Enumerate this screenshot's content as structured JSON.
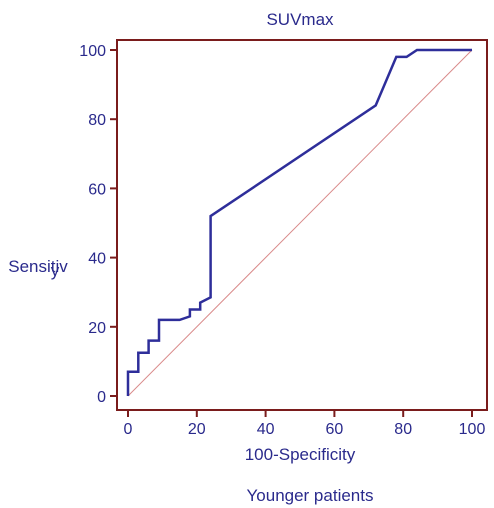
{
  "chart_data": {
    "type": "line",
    "title": "SUVmax",
    "xlabel": "100-Specificity",
    "ylabel_lines": [
      "Sensitiv",
      "y"
    ],
    "footer": "Younger patients",
    "xlim": [
      0,
      100
    ],
    "ylim": [
      0,
      100
    ],
    "x_ticks": [
      0,
      20,
      40,
      60,
      80,
      100
    ],
    "y_ticks": [
      0,
      20,
      40,
      60,
      80,
      100
    ],
    "grid": false,
    "colors": {
      "frame": "#7a1c1c",
      "roc_line": "#2e2e9a",
      "reference_line": "#d98a8a",
      "text": "#2a2a8c"
    },
    "series": [
      {
        "x": [
          0,
          0,
          0.5,
          3,
          3,
          6,
          6,
          9,
          9,
          15,
          18,
          18,
          21,
          21,
          24,
          24,
          72,
          78,
          81,
          84,
          100
        ],
        "y": [
          0,
          7,
          7,
          7,
          12.5,
          12.5,
          16,
          16,
          22,
          22,
          23,
          25,
          25,
          27,
          28.5,
          52,
          84,
          98,
          98,
          100,
          100
        ]
      }
    ],
    "reference_line": {
      "x": [
        0,
        100
      ],
      "y": [
        0,
        100
      ]
    }
  }
}
